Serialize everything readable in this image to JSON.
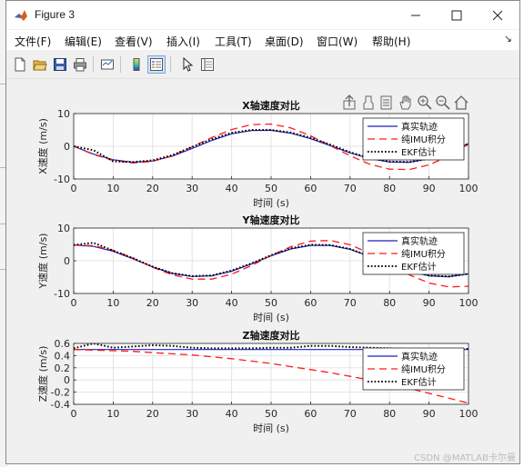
{
  "window": {
    "title": "Figure 3"
  },
  "menu": [
    {
      "label": "文件(F)"
    },
    {
      "label": "编辑(E)"
    },
    {
      "label": "查看(V)"
    },
    {
      "label": "插入(I)"
    },
    {
      "label": "工具(T)"
    },
    {
      "label": "桌面(D)"
    },
    {
      "label": "窗口(W)"
    },
    {
      "label": "帮助(H)"
    }
  ],
  "menu_overflow_icon": "chevron-arrow-icon",
  "toolbar": [
    "new-figure-icon",
    "open-file-icon",
    "save-icon",
    "print-icon",
    "link-plot-icon",
    "insert-colorbar-icon",
    "insert-legend-icon",
    "pointer-icon",
    "property-inspector-icon"
  ],
  "axes_toolbar": [
    "export-icon",
    "brush-icon",
    "data-tips-icon",
    "pan-icon",
    "zoom-in-icon",
    "zoom-out-icon",
    "restore-view-icon"
  ],
  "colors": {
    "true": "#1f1fbf",
    "imu": "#ff1a1a",
    "ekf": "#000000"
  },
  "watermark": "CSDN @MATLAB卡尔曼",
  "chart_data": [
    {
      "type": "line",
      "title": "X轴速度对比",
      "xlabel": "时间 (s)",
      "ylabel": "X速度 (m/s)",
      "xlim": [
        0,
        100
      ],
      "ylim": [
        -10,
        10
      ],
      "xticks": [
        "0",
        "10",
        "20",
        "30",
        "40",
        "50",
        "60",
        "70",
        "80",
        "90",
        "100"
      ],
      "yticks": [
        "10",
        "0",
        "-10"
      ],
      "grid": true,
      "legend_position": "top-right",
      "legend": [
        "真实轨迹",
        "纯IMU积分",
        "EKF估计"
      ],
      "x": [
        0,
        5,
        10,
        15,
        20,
        25,
        30,
        35,
        40,
        45,
        50,
        55,
        60,
        65,
        70,
        75,
        80,
        85,
        90,
        95,
        100
      ],
      "series": [
        {
          "name": "真实轨迹",
          "style": "solid",
          "values": [
            0,
            -2.4,
            -4.1,
            -4.9,
            -4.5,
            -3.0,
            -0.7,
            1.8,
            3.8,
            4.8,
            4.9,
            4.0,
            2.3,
            0.2,
            -2.0,
            -3.8,
            -4.8,
            -4.9,
            -3.8,
            -1.7,
            0.8
          ]
        },
        {
          "name": "纯IMU积分",
          "style": "dashed",
          "values": [
            0,
            -2.5,
            -4.3,
            -5.1,
            -4.6,
            -2.9,
            -0.2,
            2.7,
            5.1,
            6.6,
            6.8,
            5.6,
            3.2,
            0.2,
            -2.9,
            -5.5,
            -7.0,
            -7.1,
            -5.7,
            -3.0,
            0.7
          ]
        },
        {
          "name": "EKF估计",
          "style": "dotted",
          "values": [
            0,
            -1.2,
            -4.6,
            -4.8,
            -4.3,
            -2.7,
            -0.2,
            2.2,
            4.1,
            5.0,
            5.0,
            4.2,
            2.6,
            0.5,
            -1.8,
            -3.6,
            -4.7,
            -4.8,
            -3.8,
            -1.7,
            0.8
          ]
        }
      ]
    },
    {
      "type": "line",
      "title": "Y轴速度对比",
      "xlabel": "时间 (s)",
      "ylabel": "Y速度 (m/s)",
      "xlim": [
        0,
        100
      ],
      "ylim": [
        -10,
        10
      ],
      "xticks": [
        "0",
        "10",
        "20",
        "30",
        "40",
        "50",
        "60",
        "70",
        "80",
        "90",
        "100"
      ],
      "yticks": [
        "10",
        "0",
        "-10"
      ],
      "grid": true,
      "legend_position": "top-right",
      "legend": [
        "真实轨迹",
        "纯IMU积分",
        "EKF估计"
      ],
      "x": [
        0,
        5,
        10,
        15,
        20,
        25,
        30,
        35,
        40,
        45,
        50,
        55,
        60,
        65,
        70,
        75,
        80,
        85,
        90,
        95,
        100
      ],
      "series": [
        {
          "name": "真实轨迹",
          "style": "solid",
          "values": [
            4.8,
            4.4,
            2.9,
            0.6,
            -1.9,
            -3.9,
            -4.8,
            -4.6,
            -3.2,
            -1.0,
            1.5,
            3.6,
            4.7,
            4.7,
            3.5,
            1.3,
            -1.2,
            -3.3,
            -4.6,
            -4.9,
            -4.0
          ]
        },
        {
          "name": "纯IMU积分",
          "style": "dashed",
          "values": [
            4.8,
            4.6,
            3.2,
            0.8,
            -2.0,
            -4.3,
            -5.6,
            -5.6,
            -4.1,
            -1.5,
            1.6,
            4.3,
            6.0,
            6.2,
            4.9,
            2.3,
            -1.0,
            -4.3,
            -6.8,
            -8.0,
            -7.8
          ]
        },
        {
          "name": "EKF估计",
          "style": "dotted",
          "values": [
            4.8,
            5.5,
            3.1,
            0.8,
            -1.8,
            -3.8,
            -4.7,
            -4.5,
            -3.0,
            -0.8,
            1.7,
            3.8,
            4.9,
            4.8,
            3.6,
            1.4,
            -1.1,
            -3.2,
            -4.5,
            -4.8,
            -4.0
          ]
        }
      ]
    },
    {
      "type": "line",
      "title": "Z轴速度对比",
      "xlabel": "时间 (s)",
      "ylabel": "Z速度 (m/s)",
      "xlim": [
        0,
        100
      ],
      "ylim": [
        -0.4,
        0.6
      ],
      "xticks": [
        "0",
        "10",
        "20",
        "30",
        "40",
        "50",
        "60",
        "70",
        "80",
        "90",
        "100"
      ],
      "yticks": [
        "0.6",
        "0.4",
        "0.2",
        "0",
        "-0.2",
        "-0.4"
      ],
      "grid": true,
      "legend_position": "top-right",
      "legend": [
        "真实轨迹",
        "纯IMU积分",
        "EKF估计"
      ],
      "x": [
        0,
        5,
        10,
        15,
        20,
        25,
        30,
        35,
        40,
        45,
        50,
        55,
        60,
        65,
        70,
        75,
        80,
        85,
        90,
        95,
        100
      ],
      "series": [
        {
          "name": "真实轨迹",
          "style": "solid",
          "values": [
            0.5,
            0.5,
            0.5,
            0.5,
            0.5,
            0.5,
            0.5,
            0.5,
            0.5,
            0.5,
            0.5,
            0.5,
            0.5,
            0.5,
            0.5,
            0.5,
            0.5,
            0.5,
            0.5,
            0.5,
            0.5
          ]
        },
        {
          "name": "纯IMU积分",
          "style": "dashed",
          "values": [
            0.5,
            0.49,
            0.48,
            0.47,
            0.45,
            0.43,
            0.41,
            0.38,
            0.35,
            0.31,
            0.27,
            0.22,
            0.17,
            0.12,
            0.06,
            0.0,
            -0.07,
            -0.14,
            -0.22,
            -0.3,
            -0.38
          ]
        },
        {
          "name": "EKF估计",
          "style": "dotted",
          "values": [
            0.52,
            0.6,
            0.53,
            0.55,
            0.57,
            0.56,
            0.53,
            0.52,
            0.52,
            0.52,
            0.53,
            0.53,
            0.56,
            0.56,
            0.54,
            0.53,
            0.52,
            0.51,
            0.51,
            0.51,
            0.51
          ]
        }
      ]
    }
  ]
}
